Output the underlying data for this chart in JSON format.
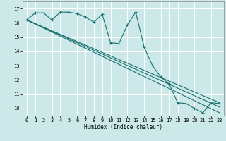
{
  "title": "",
  "xlabel": "Humidex (Indice chaleur)",
  "ylabel": "",
  "bg_color": "#cce8e8",
  "grid_color": "#ffffff",
  "line_color": "#1a7070",
  "xmin": -0.5,
  "xmax": 23.5,
  "ymin": 9.5,
  "ymax": 17.5,
  "yticks": [
    10,
    11,
    12,
    13,
    14,
    15,
    16,
    17
  ],
  "xticks": [
    0,
    1,
    2,
    3,
    4,
    5,
    6,
    7,
    8,
    9,
    10,
    11,
    12,
    13,
    14,
    15,
    16,
    17,
    18,
    19,
    20,
    21,
    22,
    23
  ],
  "main_x": [
    0,
    1,
    2,
    3,
    4,
    5,
    6,
    7,
    8,
    9,
    10,
    11,
    12,
    13,
    14,
    15,
    16,
    17,
    18,
    19,
    20,
    21,
    22,
    23
  ],
  "main_y": [
    16.2,
    16.7,
    16.7,
    16.2,
    16.75,
    16.75,
    16.65,
    16.4,
    16.05,
    16.6,
    14.6,
    14.55,
    15.85,
    16.75,
    14.3,
    13.0,
    12.2,
    11.7,
    10.4,
    10.35,
    10.0,
    9.7,
    10.4,
    10.35
  ],
  "line1_x": [
    0,
    23
  ],
  "line1_y": [
    16.2,
    10.4
  ],
  "line2_x": [
    0,
    23
  ],
  "line2_y": [
    16.2,
    9.7
  ],
  "line3_x": [
    0,
    23
  ],
  "line3_y": [
    16.2,
    10.1
  ]
}
